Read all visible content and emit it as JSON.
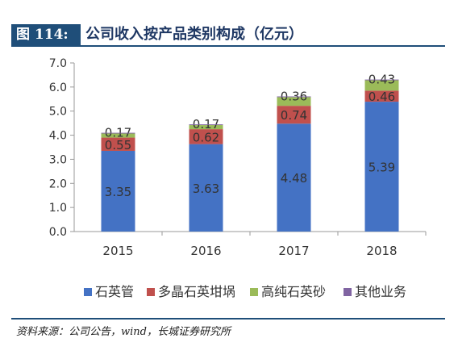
{
  "header": {
    "figure_label": "图 114:",
    "title": "公司收入按产品类别构成（亿元）"
  },
  "source": "资料来源：公司公告，wind，长城证券研究所",
  "chart_data": {
    "type": "bar",
    "stacked": true,
    "categories": [
      "2015",
      "2016",
      "2017",
      "2018"
    ],
    "series": [
      {
        "name": "石英管",
        "color": "#4472c4",
        "values": [
          3.35,
          3.63,
          4.48,
          5.39
        ]
      },
      {
        "name": "多晶石英坩埚",
        "color": "#c0504d",
        "values": [
          0.55,
          0.62,
          0.74,
          0.46
        ]
      },
      {
        "name": "高纯石英砂",
        "color": "#9bbb59",
        "values": [
          0.17,
          0.17,
          0.36,
          0.43
        ]
      },
      {
        "name": "其他业务",
        "color": "#8064a2",
        "values": [
          0.03,
          0.03,
          0.03,
          0.03
        ]
      }
    ],
    "y_ticks": [
      "0.0",
      "1.0",
      "2.0",
      "3.0",
      "4.0",
      "5.0",
      "6.0",
      "7.0"
    ],
    "ylim": [
      0,
      7
    ],
    "grid": false,
    "legend_position": "bottom"
  }
}
